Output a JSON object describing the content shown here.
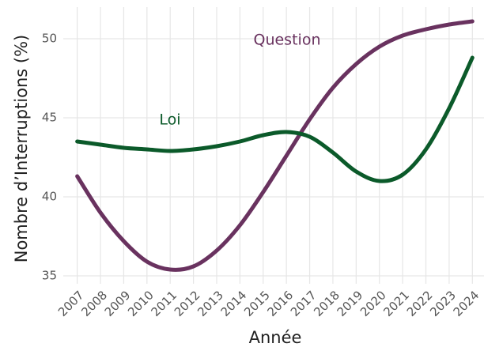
{
  "chart_data": {
    "type": "line",
    "x_label": "Année",
    "y_label": "Nombre d’Interruptions (%)",
    "x": [
      2007,
      2008,
      2009,
      2010,
      2011,
      2012,
      2013,
      2014,
      2015,
      2016,
      2017,
      2018,
      2019,
      2020,
      2021,
      2022,
      2023,
      2024
    ],
    "xlim": [
      2006.4,
      2024.5
    ],
    "xticks": [
      2007,
      2008,
      2009,
      2010,
      2011,
      2012,
      2013,
      2014,
      2015,
      2016,
      2017,
      2018,
      2019,
      2020,
      2021,
      2022,
      2023,
      2024
    ],
    "ylim": [
      34.5,
      52
    ],
    "yticks": [
      35,
      40,
      45,
      50
    ],
    "grid": true,
    "series": [
      {
        "name": "Question",
        "color": "#69325f",
        "values": [
          41.3,
          39.0,
          37.2,
          35.9,
          35.4,
          35.6,
          36.6,
          38.2,
          40.3,
          42.6,
          44.9,
          46.9,
          48.4,
          49.5,
          50.2,
          50.6,
          50.9,
          51.1
        ]
      },
      {
        "name": "Loi",
        "color": "#0b5a2a",
        "values": [
          43.5,
          43.3,
          43.1,
          43.0,
          42.9,
          43.0,
          43.2,
          43.5,
          43.9,
          44.1,
          43.8,
          42.8,
          41.6,
          41.0,
          41.4,
          43.0,
          45.6,
          48.8
        ]
      }
    ]
  }
}
